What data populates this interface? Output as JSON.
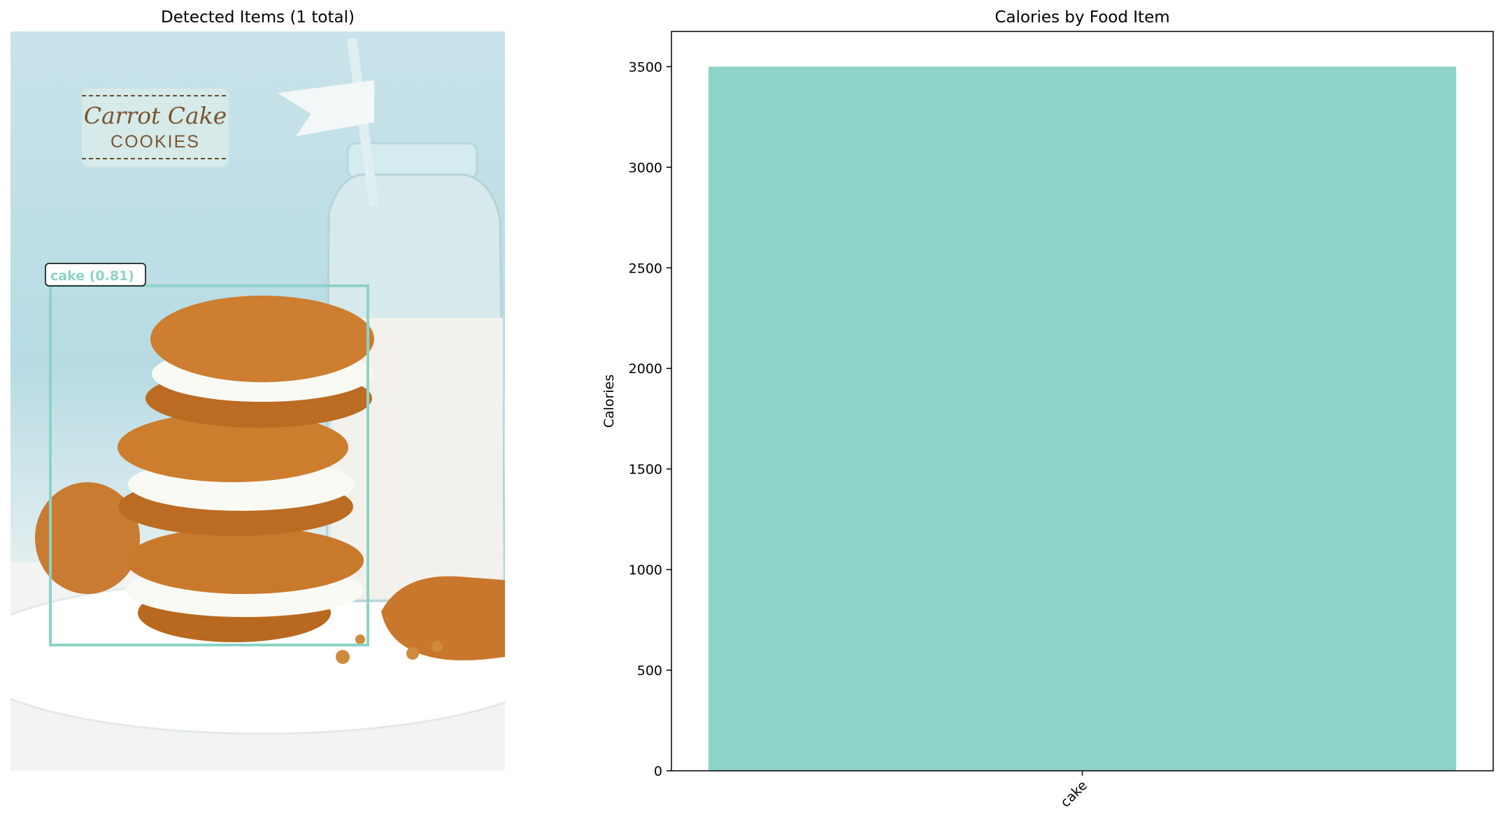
{
  "detection_panel": {
    "title": "Detected Items (1 total)",
    "image_text": {
      "line1": "Carrot Cake",
      "line2": "COOKIES"
    },
    "detections": [
      {
        "label": "cake (0.81)",
        "color": "#8dd3c7"
      }
    ]
  },
  "chart_data": {
    "type": "bar",
    "title": "Calories by Food Item",
    "categories": [
      "cake"
    ],
    "values": [
      3500
    ],
    "xlabel": "",
    "ylabel": "Calories",
    "ylim": [
      0,
      3675
    ],
    "yticks": [
      0,
      500,
      1000,
      1500,
      2000,
      2500,
      3000,
      3500
    ],
    "bar_color": "#8dd3c7",
    "grid": false
  }
}
